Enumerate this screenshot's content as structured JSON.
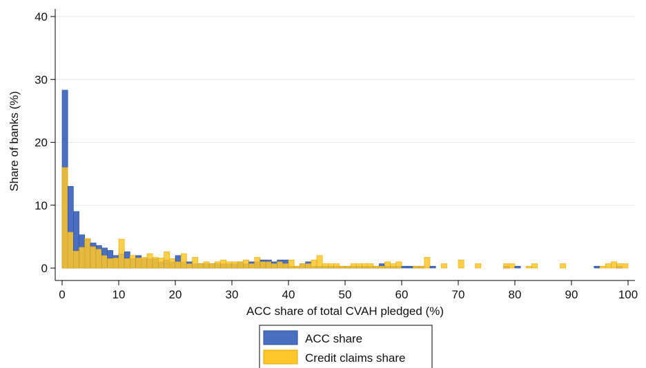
{
  "chart_data": {
    "type": "bar",
    "title": "",
    "xlabel": "ACC share of total CVAH pledged (%)",
    "ylabel": "Share of banks (%)",
    "xlim": [
      0,
      100
    ],
    "ylim": [
      0,
      40
    ],
    "xticks": [
      0,
      10,
      20,
      30,
      40,
      50,
      60,
      70,
      80,
      90,
      100
    ],
    "yticks": [
      0,
      10,
      20,
      30,
      40
    ],
    "bin_width": 1,
    "grid": true,
    "legend_position": "bottom",
    "colors": {
      "acc": "#4a6ec0",
      "acc_edge": "#2c4d9a",
      "credit": "#ffc72c",
      "credit_edge": "#e0a800",
      "overlap": "#b8962c",
      "grid": "#e6e6e6"
    },
    "series": [
      {
        "name": "ACC share",
        "values": [
          28.3,
          13.0,
          9.0,
          5.3,
          4.6,
          4.0,
          3.6,
          3.2,
          2.8,
          2.0,
          2.3,
          2.6,
          1.5,
          2.0,
          1.5,
          1.5,
          1.5,
          1.0,
          1.3,
          1.0,
          2.0,
          1.0,
          1.0,
          0.7,
          0.7,
          0.7,
          0.7,
          0.7,
          0.7,
          0.7,
          0.7,
          1.0,
          0.7,
          1.0,
          1.0,
          1.3,
          1.3,
          1.0,
          1.3,
          1.3,
          0.3,
          0.3,
          0.7,
          1.0,
          0.3,
          0.3,
          0.3,
          0.3,
          0.3,
          0.3,
          0.3,
          0.3,
          0.3,
          0.3,
          0.3,
          0.3,
          0.7,
          0.3,
          0.3,
          0.3,
          0.3,
          0.3,
          0.3,
          0.3,
          0.0,
          0.3,
          0.0,
          0.0,
          0.0,
          0.0,
          0.0,
          0.0,
          0.0,
          0.0,
          0.0,
          0.0,
          0.0,
          0.0,
          0.3,
          0.0,
          0.3,
          0.0,
          0.0,
          0.0,
          0.0,
          0.0,
          0.0,
          0.0,
          0.0,
          0.0,
          0.0,
          0.0,
          0.0,
          0.0,
          0.3,
          0.0,
          0.0,
          0.0,
          0.3,
          0.0
        ]
      },
      {
        "name": "Credit claims share",
        "values": [
          16.0,
          5.7,
          2.7,
          3.3,
          4.7,
          3.4,
          3.0,
          2.0,
          1.5,
          1.6,
          4.6,
          1.5,
          2.0,
          1.6,
          1.7,
          2.3,
          1.7,
          1.6,
          2.6,
          1.5,
          1.0,
          2.3,
          0.7,
          1.7,
          0.7,
          1.0,
          0.7,
          1.0,
          1.3,
          1.0,
          1.0,
          1.0,
          1.3,
          0.7,
          1.7,
          1.0,
          1.0,
          0.7,
          1.0,
          0.7,
          1.3,
          0.3,
          0.7,
          0.7,
          1.3,
          2.0,
          0.7,
          0.7,
          0.7,
          0.3,
          0.3,
          0.7,
          0.7,
          0.7,
          0.7,
          0.3,
          0.3,
          1.0,
          0.7,
          1.0,
          0.0,
          0.0,
          0.3,
          0.3,
          1.7,
          0.0,
          0.0,
          0.7,
          0.0,
          0.0,
          1.3,
          0.0,
          0.0,
          0.7,
          0.0,
          0.0,
          0.0,
          0.0,
          0.7,
          0.7,
          0.0,
          0.0,
          0.3,
          0.7,
          0.0,
          0.0,
          0.0,
          0.0,
          0.7,
          0.0,
          0.0,
          0.0,
          0.0,
          0.0,
          0.0,
          0.3,
          0.7,
          1.0,
          0.7,
          0.7
        ]
      }
    ]
  }
}
